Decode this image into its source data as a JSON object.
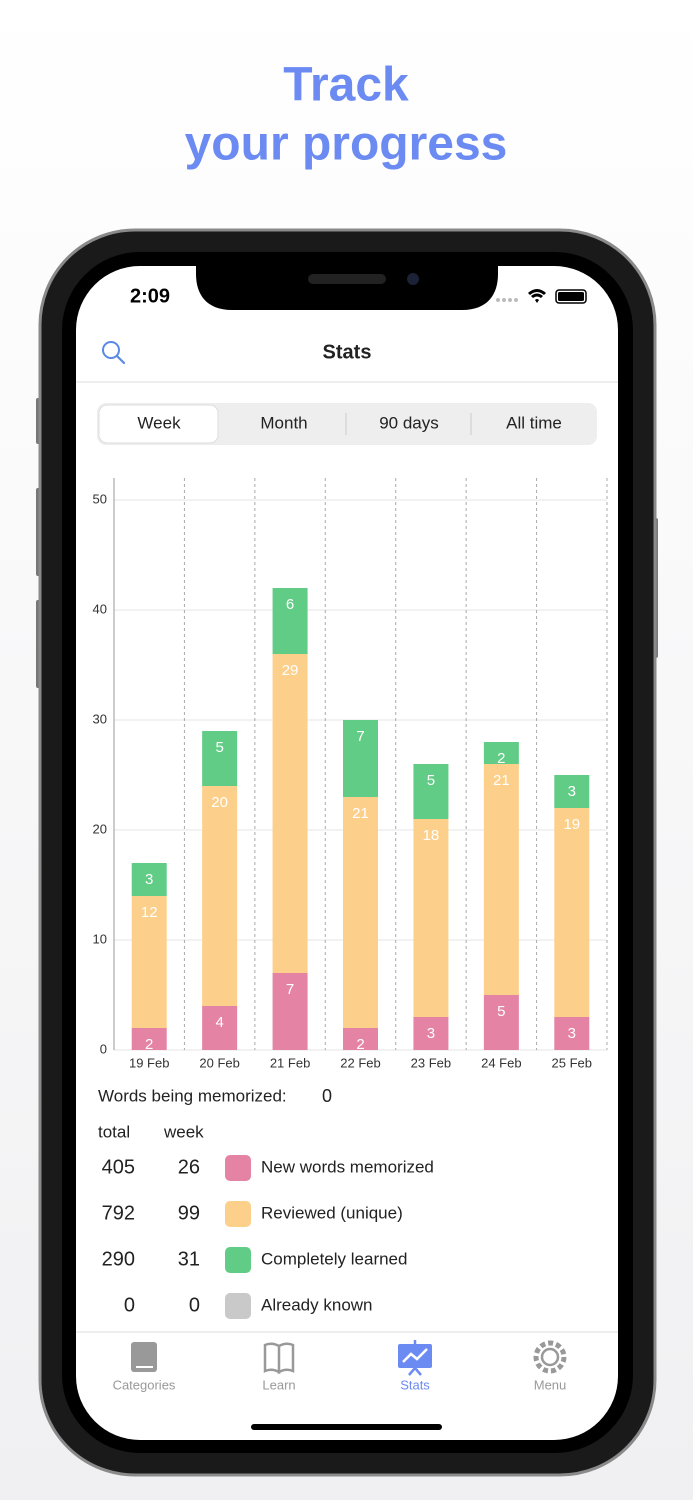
{
  "header": {
    "title_line1": "Track",
    "title_line2": "your progress"
  },
  "status_bar": {
    "time": "2:09"
  },
  "nav": {
    "title": "Stats"
  },
  "segments": [
    "Week",
    "Month",
    "90 days",
    "All time"
  ],
  "chart_data": {
    "type": "stacked-bar",
    "categories": [
      "19 Feb",
      "20 Feb",
      "21 Feb",
      "22 Feb",
      "23 Feb",
      "24 Feb",
      "25 Feb"
    ],
    "series": [
      {
        "name": "New words memorized",
        "color": "#e483a3",
        "values": [
          2,
          4,
          7,
          2,
          3,
          5,
          3
        ]
      },
      {
        "name": "Reviewed (unique)",
        "color": "#fcd08a",
        "values": [
          12,
          20,
          29,
          21,
          18,
          21,
          19
        ]
      },
      {
        "name": "Completely learned",
        "color": "#61cc85",
        "values": [
          3,
          5,
          6,
          7,
          5,
          2,
          3
        ]
      },
      {
        "name": "Already known",
        "color": "#c9c9c9",
        "values": [
          0,
          0,
          0,
          0,
          0,
          0,
          0
        ]
      }
    ],
    "ylim": [
      0,
      52
    ],
    "yticks": [
      0,
      10,
      20,
      30,
      40,
      50
    ],
    "grid": true
  },
  "summary": {
    "being_memorized_label": "Words being memorized:",
    "being_memorized": 0,
    "columns": [
      "total",
      "week"
    ],
    "rows": [
      [
        405,
        26
      ],
      [
        792,
        99
      ],
      [
        290,
        31
      ],
      [
        0,
        0
      ]
    ]
  },
  "tabs": [
    "Categories",
    "Learn",
    "Stats",
    "Menu"
  ]
}
